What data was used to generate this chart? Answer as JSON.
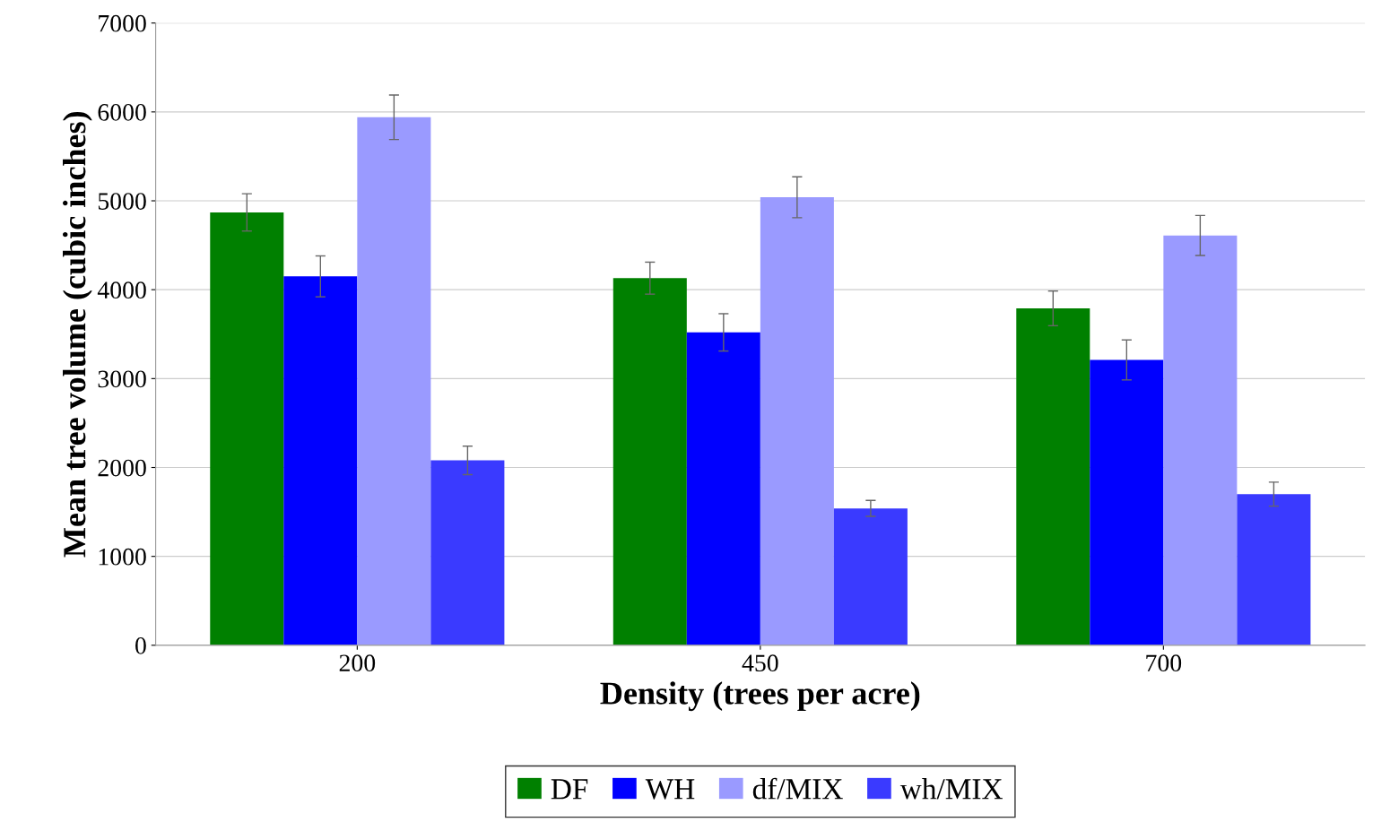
{
  "chart_data": {
    "type": "bar",
    "xlabel": "Density (trees per acre)",
    "ylabel": "Mean tree volume (cubic inches)",
    "categories": [
      "200",
      "450",
      "700"
    ],
    "series": [
      {
        "name": "DF",
        "color": "#008000",
        "values": [
          4870,
          4130,
          3790
        ],
        "errors": [
          210,
          180,
          195
        ]
      },
      {
        "name": "WH",
        "color": "#0000ff",
        "values": [
          4150,
          3520,
          3210
        ],
        "errors": [
          230,
          210,
          225
        ]
      },
      {
        "name": "df/MIX",
        "color": "#9a9aff",
        "values": [
          5940,
          5040,
          4610
        ],
        "errors": [
          250,
          230,
          225
        ]
      },
      {
        "name": "wh/MIX",
        "color": "#3a3aff",
        "values": [
          2080,
          1540,
          1700
        ],
        "errors": [
          160,
          90,
          135
        ]
      }
    ],
    "ylim": [
      0,
      7000
    ],
    "yticks": [
      0,
      1000,
      2000,
      3000,
      4000,
      5000,
      6000,
      7000
    ],
    "grid": "y",
    "legend": "bottom"
  }
}
